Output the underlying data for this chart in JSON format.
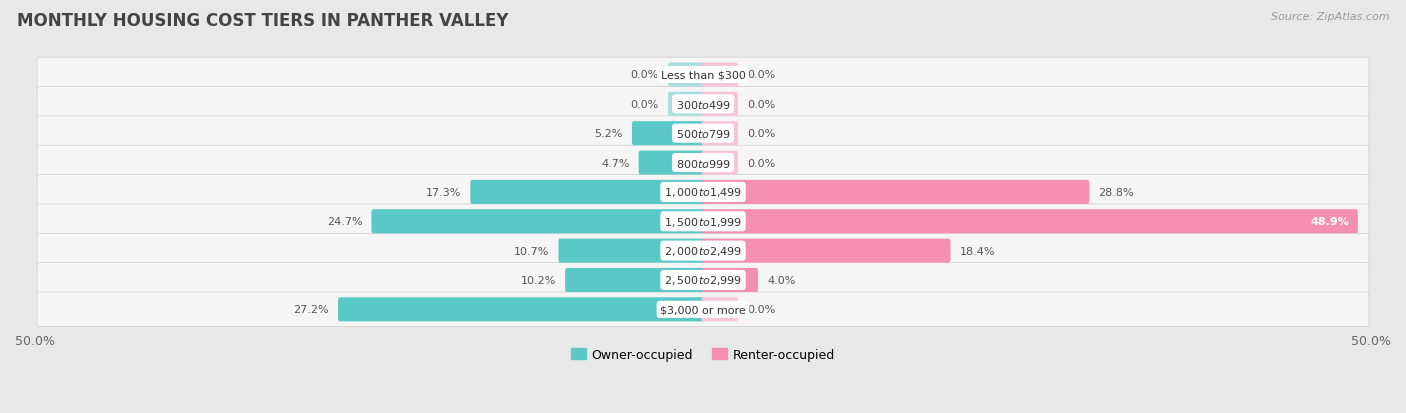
{
  "title": "MONTHLY HOUSING COST TIERS IN PANTHER VALLEY",
  "source": "Source: ZipAtlas.com",
  "categories": [
    "Less than $300",
    "$300 to $499",
    "$500 to $799",
    "$800 to $999",
    "$1,000 to $1,499",
    "$1,500 to $1,999",
    "$2,000 to $2,499",
    "$2,500 to $2,999",
    "$3,000 or more"
  ],
  "owner_values": [
    0.0,
    0.0,
    5.2,
    4.7,
    17.3,
    24.7,
    10.7,
    10.2,
    27.2
  ],
  "renter_values": [
    0.0,
    0.0,
    0.0,
    0.0,
    28.8,
    48.9,
    18.4,
    4.0,
    0.0
  ],
  "owner_color": "#5bc8c8",
  "renter_color": "#f48fb1",
  "owner_color_light": "#a8dede",
  "renter_color_light": "#f9c4d8",
  "axis_max": 50.0,
  "background_color": "#e8e8e8",
  "row_bg_color": "#f5f5f5",
  "label_color": "#666666",
  "title_color": "#444444",
  "legend_owner": "Owner-occupied",
  "legend_renter": "Renter-occupied",
  "x_tick_left": "50.0%",
  "x_tick_right": "50.0%",
  "stub_size": 2.5
}
